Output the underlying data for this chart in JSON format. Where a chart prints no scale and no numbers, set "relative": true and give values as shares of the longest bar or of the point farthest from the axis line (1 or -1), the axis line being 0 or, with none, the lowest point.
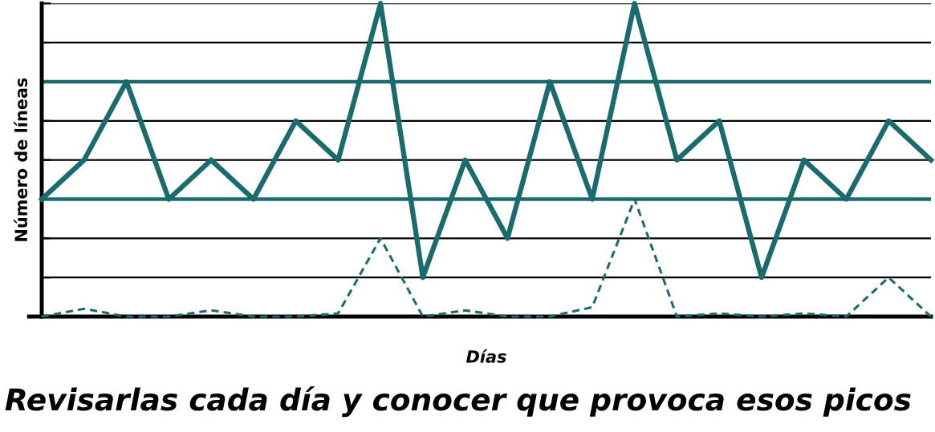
{
  "chart_data": {
    "type": "line",
    "relative": true,
    "xlabel": "Días",
    "ylabel": "Número de líneas",
    "annotations": [
      "Revisarlas cada día y conocer que provoca esos picos"
    ],
    "categories": [
      null,
      null,
      null,
      null,
      null,
      null,
      null,
      null,
      null,
      null,
      null,
      null,
      null,
      null,
      null,
      null,
      null,
      null,
      null,
      null,
      null,
      null
    ],
    "series": [
      {
        "color": "#1a6b6e",
        "line_style": "solid",
        "values": [
          0.375,
          0.5,
          0.75,
          0.375,
          0.5,
          0.375,
          0.625,
          0.5,
          1,
          0.125,
          0.5,
          0.25,
          0.75,
          0.375,
          1,
          0.5,
          0.625,
          0.125,
          0.5,
          0.375,
          0.625,
          0.5
        ]
      },
      {
        "color": "#1a6b6e",
        "line_style": "dashed",
        "values": [
          0,
          0.025,
          0,
          0,
          0.02,
          0,
          0,
          0.01,
          0.25,
          0,
          0.02,
          0,
          0,
          0.03,
          0.375,
          0,
          0.01,
          0,
          0.01,
          0,
          0.125,
          0
        ]
      }
    ],
    "ref_lines": [
      {
        "axis": "y",
        "value": 0.75,
        "color": "#1a6b6e"
      },
      {
        "axis": "y",
        "value": 0.375,
        "color": "#1a6b6e"
      }
    ],
    "grid": "y",
    "tick_labels": false,
    "legend": false,
    "marker": "none"
  }
}
